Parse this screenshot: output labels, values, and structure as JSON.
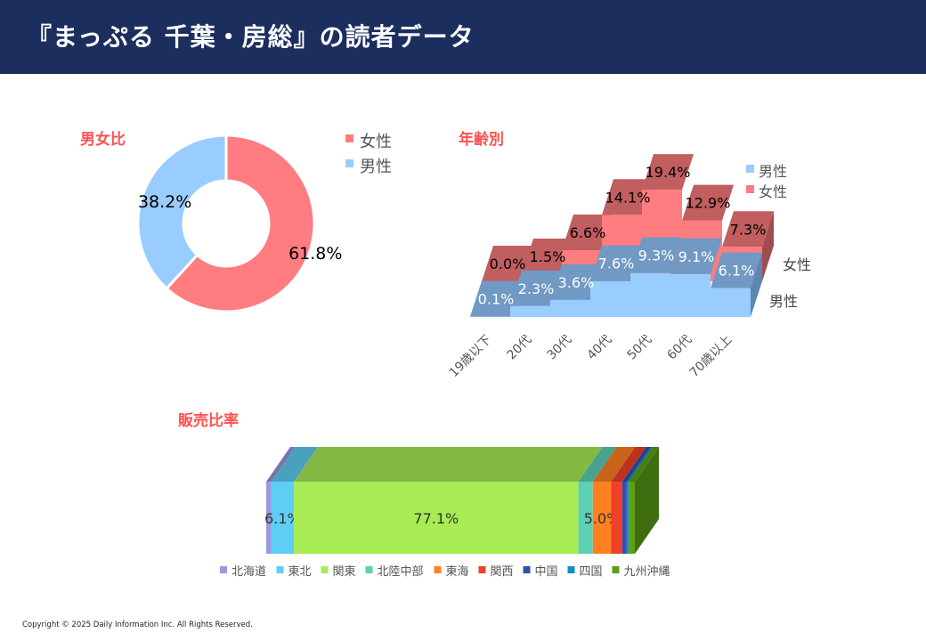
{
  "header": {
    "title": "『まっぷる 千葉・房総』の読者データ"
  },
  "footer": {
    "copyright": "Copyright © 2025 Daily Information Inc. All Rights Reserved."
  },
  "chart_data": [
    {
      "type": "pie",
      "title": "男女比",
      "donut": true,
      "legend_position": "right",
      "slices": [
        {
          "name": "女性",
          "value": 61.8,
          "label": "61.8%",
          "color": "#ff7c80"
        },
        {
          "name": "男性",
          "value": 38.2,
          "label": "38.2%",
          "color": "#99ccff"
        }
      ]
    },
    {
      "type": "area",
      "title": "年齢別",
      "three_d": true,
      "legend_position": "top-right",
      "categories": [
        "19歳以下",
        "20代",
        "30代",
        "40代",
        "50代",
        "60代",
        "70歳以上"
      ],
      "series": [
        {
          "name": "男性",
          "values": [
            0.1,
            2.3,
            3.6,
            7.6,
            9.3,
            9.1,
            6.1
          ],
          "labels": [
            "0.1%",
            "2.3%",
            "3.6%",
            "7.6%",
            "9.3%",
            "9.1%",
            "6.1%"
          ],
          "color": "#99ccff",
          "top_color": "#7099c4"
        },
        {
          "name": "女性",
          "values": [
            0.0,
            1.5,
            6.6,
            14.1,
            19.4,
            12.9,
            7.3
          ],
          "labels": [
            "0.0%",
            "1.5%",
            "6.6%",
            "14.1%",
            "19.4%",
            "12.9%",
            "7.3%"
          ],
          "color": "#ff7c80",
          "top_color": "#c05e60"
        }
      ]
    },
    {
      "type": "bar",
      "title": "販売比率",
      "stacked_100": true,
      "three_d": true,
      "legend_position": "bottom",
      "series": [
        {
          "name": "北海道",
          "value": 1.4,
          "color": "#9999dd"
        },
        {
          "name": "東北",
          "value": 6.1,
          "label": "6.1%",
          "color": "#5fcef5"
        },
        {
          "name": "関東",
          "value": 77.1,
          "label": "77.1%",
          "color": "#a8ec55"
        },
        {
          "name": "北陸中部",
          "value": 3.9,
          "color": "#5ed0b5"
        },
        {
          "name": "東海",
          "value": 5.0,
          "label": "5.0%",
          "color": "#ff8020"
        },
        {
          "name": "関西",
          "value": 3.0,
          "color": "#f04028"
        },
        {
          "name": "中国",
          "value": 1.2,
          "color": "#3050b0"
        },
        {
          "name": "四国",
          "value": 0.6,
          "color": "#1090c0"
        },
        {
          "name": "九州沖縄",
          "value": 1.6,
          "color": "#60a010"
        }
      ]
    }
  ]
}
